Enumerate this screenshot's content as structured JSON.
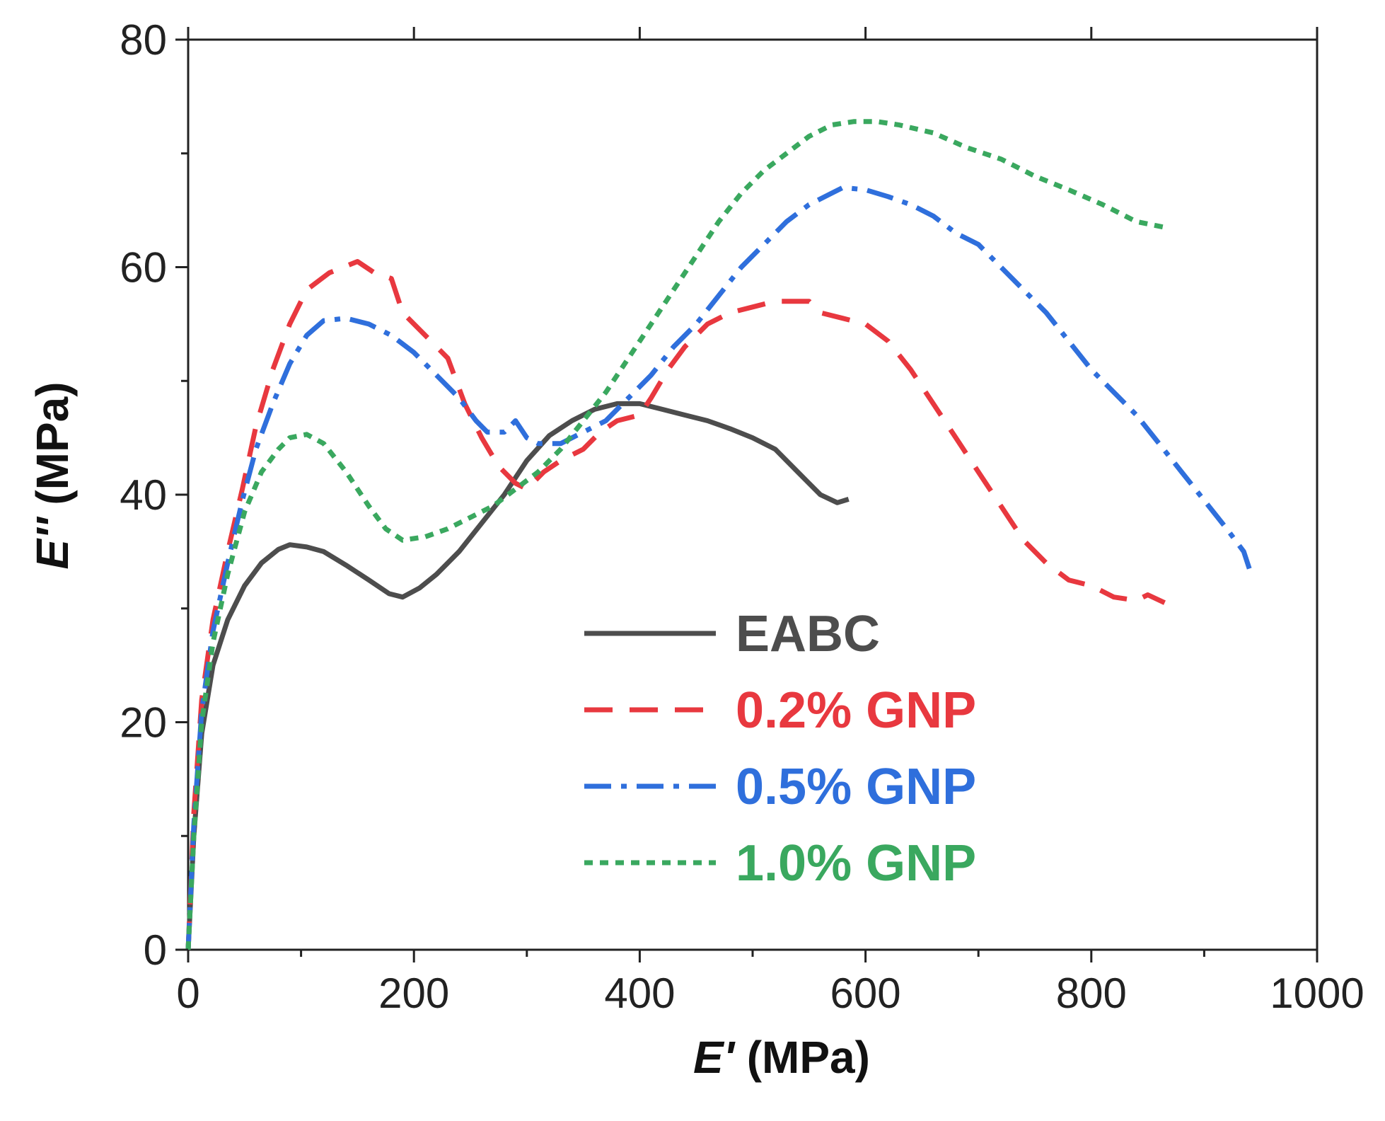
{
  "chart_data": {
    "type": "line",
    "xlabel_symbol": "E'",
    "xlabel_unit": " (MPa)",
    "ylabel_symbol": "E''",
    "ylabel_unit": " (MPa)",
    "xlim": [
      0,
      1000
    ],
    "ylim": [
      0,
      80
    ],
    "xticks": [
      0,
      200,
      400,
      600,
      800,
      1000
    ],
    "yticks": [
      0,
      20,
      40,
      60,
      80
    ],
    "grid": false,
    "legend_position": "lower-center",
    "series": [
      {
        "name": "EABC",
        "color": "#4d4d4d",
        "dash": "solid",
        "points": [
          [
            0,
            0
          ],
          [
            5,
            10
          ],
          [
            12,
            19
          ],
          [
            22,
            25
          ],
          [
            35,
            29
          ],
          [
            50,
            32
          ],
          [
            65,
            34
          ],
          [
            80,
            35.2
          ],
          [
            90,
            35.6
          ],
          [
            105,
            35.4
          ],
          [
            120,
            35
          ],
          [
            140,
            33.8
          ],
          [
            160,
            32.5
          ],
          [
            178,
            31.3
          ],
          [
            190,
            31
          ],
          [
            205,
            31.8
          ],
          [
            220,
            33
          ],
          [
            240,
            35
          ],
          [
            260,
            37.5
          ],
          [
            280,
            40
          ],
          [
            300,
            43
          ],
          [
            320,
            45.2
          ],
          [
            340,
            46.5
          ],
          [
            360,
            47.5
          ],
          [
            380,
            48
          ],
          [
            400,
            48
          ],
          [
            420,
            47.5
          ],
          [
            440,
            47
          ],
          [
            460,
            46.5
          ],
          [
            480,
            45.8
          ],
          [
            500,
            45
          ],
          [
            520,
            44
          ],
          [
            540,
            42
          ],
          [
            560,
            40
          ],
          [
            575,
            39.3
          ],
          [
            585,
            39.6
          ]
        ]
      },
      {
        "name": "0.2% GNP",
        "color": "#e8383f",
        "dash": "long-dash",
        "points": [
          [
            0,
            0
          ],
          [
            5,
            12
          ],
          [
            12,
            22
          ],
          [
            22,
            29
          ],
          [
            35,
            35
          ],
          [
            48,
            40.5
          ],
          [
            60,
            46
          ],
          [
            75,
            51
          ],
          [
            90,
            55
          ],
          [
            105,
            58
          ],
          [
            125,
            59.5
          ],
          [
            150,
            60.5
          ],
          [
            165,
            59.5
          ],
          [
            180,
            59
          ],
          [
            190,
            56
          ],
          [
            210,
            54
          ],
          [
            230,
            52
          ],
          [
            245,
            48
          ],
          [
            260,
            45
          ],
          [
            275,
            42.5
          ],
          [
            290,
            41
          ],
          [
            300,
            40.5
          ],
          [
            315,
            42
          ],
          [
            330,
            43
          ],
          [
            350,
            44
          ],
          [
            365,
            45.5
          ],
          [
            380,
            46.5
          ],
          [
            400,
            47
          ],
          [
            410,
            48.5
          ],
          [
            425,
            51
          ],
          [
            440,
            53
          ],
          [
            460,
            55
          ],
          [
            480,
            56
          ],
          [
            500,
            56.5
          ],
          [
            520,
            57
          ],
          [
            550,
            57
          ],
          [
            560,
            56
          ],
          [
            580,
            55.5
          ],
          [
            600,
            55
          ],
          [
            620,
            53.5
          ],
          [
            640,
            51
          ],
          [
            660,
            48
          ],
          [
            680,
            45
          ],
          [
            700,
            42
          ],
          [
            720,
            39
          ],
          [
            740,
            36
          ],
          [
            760,
            34
          ],
          [
            780,
            32.5
          ],
          [
            800,
            32
          ],
          [
            820,
            31
          ],
          [
            840,
            30.7
          ],
          [
            850,
            31.2
          ],
          [
            865,
            30.5
          ]
        ]
      },
      {
        "name": "0.5% GNP",
        "color": "#2f6fdc",
        "dash": "dash-dot",
        "points": [
          [
            0,
            0
          ],
          [
            5,
            11
          ],
          [
            12,
            21
          ],
          [
            22,
            28
          ],
          [
            35,
            34
          ],
          [
            48,
            39.5
          ],
          [
            60,
            44
          ],
          [
            75,
            48
          ],
          [
            90,
            51.5
          ],
          [
            105,
            54
          ],
          [
            120,
            55.3
          ],
          [
            140,
            55.5
          ],
          [
            160,
            55
          ],
          [
            180,
            54
          ],
          [
            200,
            52.5
          ],
          [
            220,
            50.5
          ],
          [
            240,
            48.5
          ],
          [
            255,
            46.5
          ],
          [
            265,
            45.5
          ],
          [
            280,
            45.5
          ],
          [
            290,
            46.5
          ],
          [
            300,
            45
          ],
          [
            310,
            44.5
          ],
          [
            330,
            44.5
          ],
          [
            350,
            45.5
          ],
          [
            370,
            46.5
          ],
          [
            390,
            48.5
          ],
          [
            410,
            50.5
          ],
          [
            430,
            53
          ],
          [
            450,
            55
          ],
          [
            470,
            57.5
          ],
          [
            490,
            60
          ],
          [
            510,
            62
          ],
          [
            530,
            64
          ],
          [
            550,
            65.5
          ],
          [
            570,
            66.5
          ],
          [
            580,
            67
          ],
          [
            600,
            66.8
          ],
          [
            620,
            66.2
          ],
          [
            640,
            65.5
          ],
          [
            660,
            64.5
          ],
          [
            680,
            63
          ],
          [
            700,
            62
          ],
          [
            720,
            60
          ],
          [
            740,
            58
          ],
          [
            760,
            56
          ],
          [
            780,
            53.5
          ],
          [
            800,
            51
          ],
          [
            820,
            49
          ],
          [
            840,
            47
          ],
          [
            860,
            44.5
          ],
          [
            880,
            42
          ],
          [
            900,
            39.5
          ],
          [
            920,
            37
          ],
          [
            935,
            35
          ],
          [
            940,
            33.5
          ]
        ]
      },
      {
        "name": "1.0% GNP",
        "color": "#3aa85f",
        "dash": "short-dash",
        "points": [
          [
            0,
            0
          ],
          [
            5,
            10
          ],
          [
            12,
            20
          ],
          [
            22,
            27
          ],
          [
            35,
            33
          ],
          [
            50,
            38.5
          ],
          [
            65,
            42
          ],
          [
            80,
            44
          ],
          [
            90,
            45
          ],
          [
            105,
            45.3
          ],
          [
            120,
            44.5
          ],
          [
            140,
            42
          ],
          [
            160,
            39
          ],
          [
            175,
            37
          ],
          [
            190,
            36
          ],
          [
            210,
            36.3
          ],
          [
            230,
            37
          ],
          [
            250,
            38
          ],
          [
            270,
            39
          ],
          [
            290,
            40.5
          ],
          [
            310,
            42
          ],
          [
            330,
            44
          ],
          [
            350,
            46.5
          ],
          [
            370,
            49
          ],
          [
            390,
            52
          ],
          [
            410,
            55
          ],
          [
            430,
            58
          ],
          [
            450,
            61
          ],
          [
            470,
            64
          ],
          [
            490,
            66.5
          ],
          [
            510,
            68.5
          ],
          [
            530,
            70
          ],
          [
            550,
            71.5
          ],
          [
            570,
            72.5
          ],
          [
            590,
            72.8
          ],
          [
            610,
            72.8
          ],
          [
            630,
            72.5
          ],
          [
            660,
            71.8
          ],
          [
            690,
            70.5
          ],
          [
            720,
            69.5
          ],
          [
            750,
            68
          ],
          [
            780,
            66.8
          ],
          [
            810,
            65.5
          ],
          [
            840,
            64
          ],
          [
            865,
            63.5
          ]
        ]
      }
    ]
  }
}
